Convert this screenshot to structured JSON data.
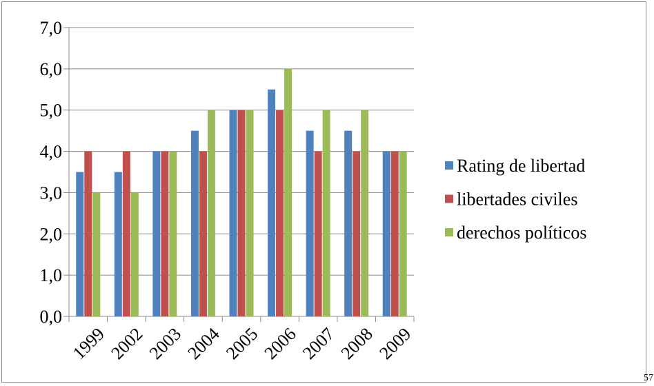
{
  "chart_data": {
    "type": "bar",
    "categories": [
      "1999",
      "2002",
      "2003",
      "2004",
      "2005",
      "2006",
      "2007",
      "2008",
      "2009"
    ],
    "series": [
      {
        "name": "Rating de libertad",
        "color": "#4f81bd",
        "values": [
          3.5,
          3.5,
          4,
          4.5,
          5,
          5.5,
          4.5,
          4.5,
          4
        ]
      },
      {
        "name": "libertades civiles",
        "color": "#c0504d",
        "values": [
          4,
          4,
          4,
          4,
          5,
          5,
          4,
          4,
          4
        ]
      },
      {
        "name": "derechos políticos",
        "color": "#9bbb59",
        "values": [
          3,
          3,
          4,
          5,
          5,
          6,
          5,
          5,
          4
        ]
      }
    ],
    "ylim": [
      0,
      7
    ],
    "yticks": [
      {
        "value": 0,
        "label": "0,0"
      },
      {
        "value": 1,
        "label": "1,0"
      },
      {
        "value": 2,
        "label": "2,0"
      },
      {
        "value": 3,
        "label": "3,0"
      },
      {
        "value": 4,
        "label": "4,0"
      },
      {
        "value": 5,
        "label": "5,0"
      },
      {
        "value": 6,
        "label": "6,0"
      },
      {
        "value": 7,
        "label": "7,0"
      }
    ],
    "grid": true,
    "legend": "right"
  },
  "footer_text": "57"
}
